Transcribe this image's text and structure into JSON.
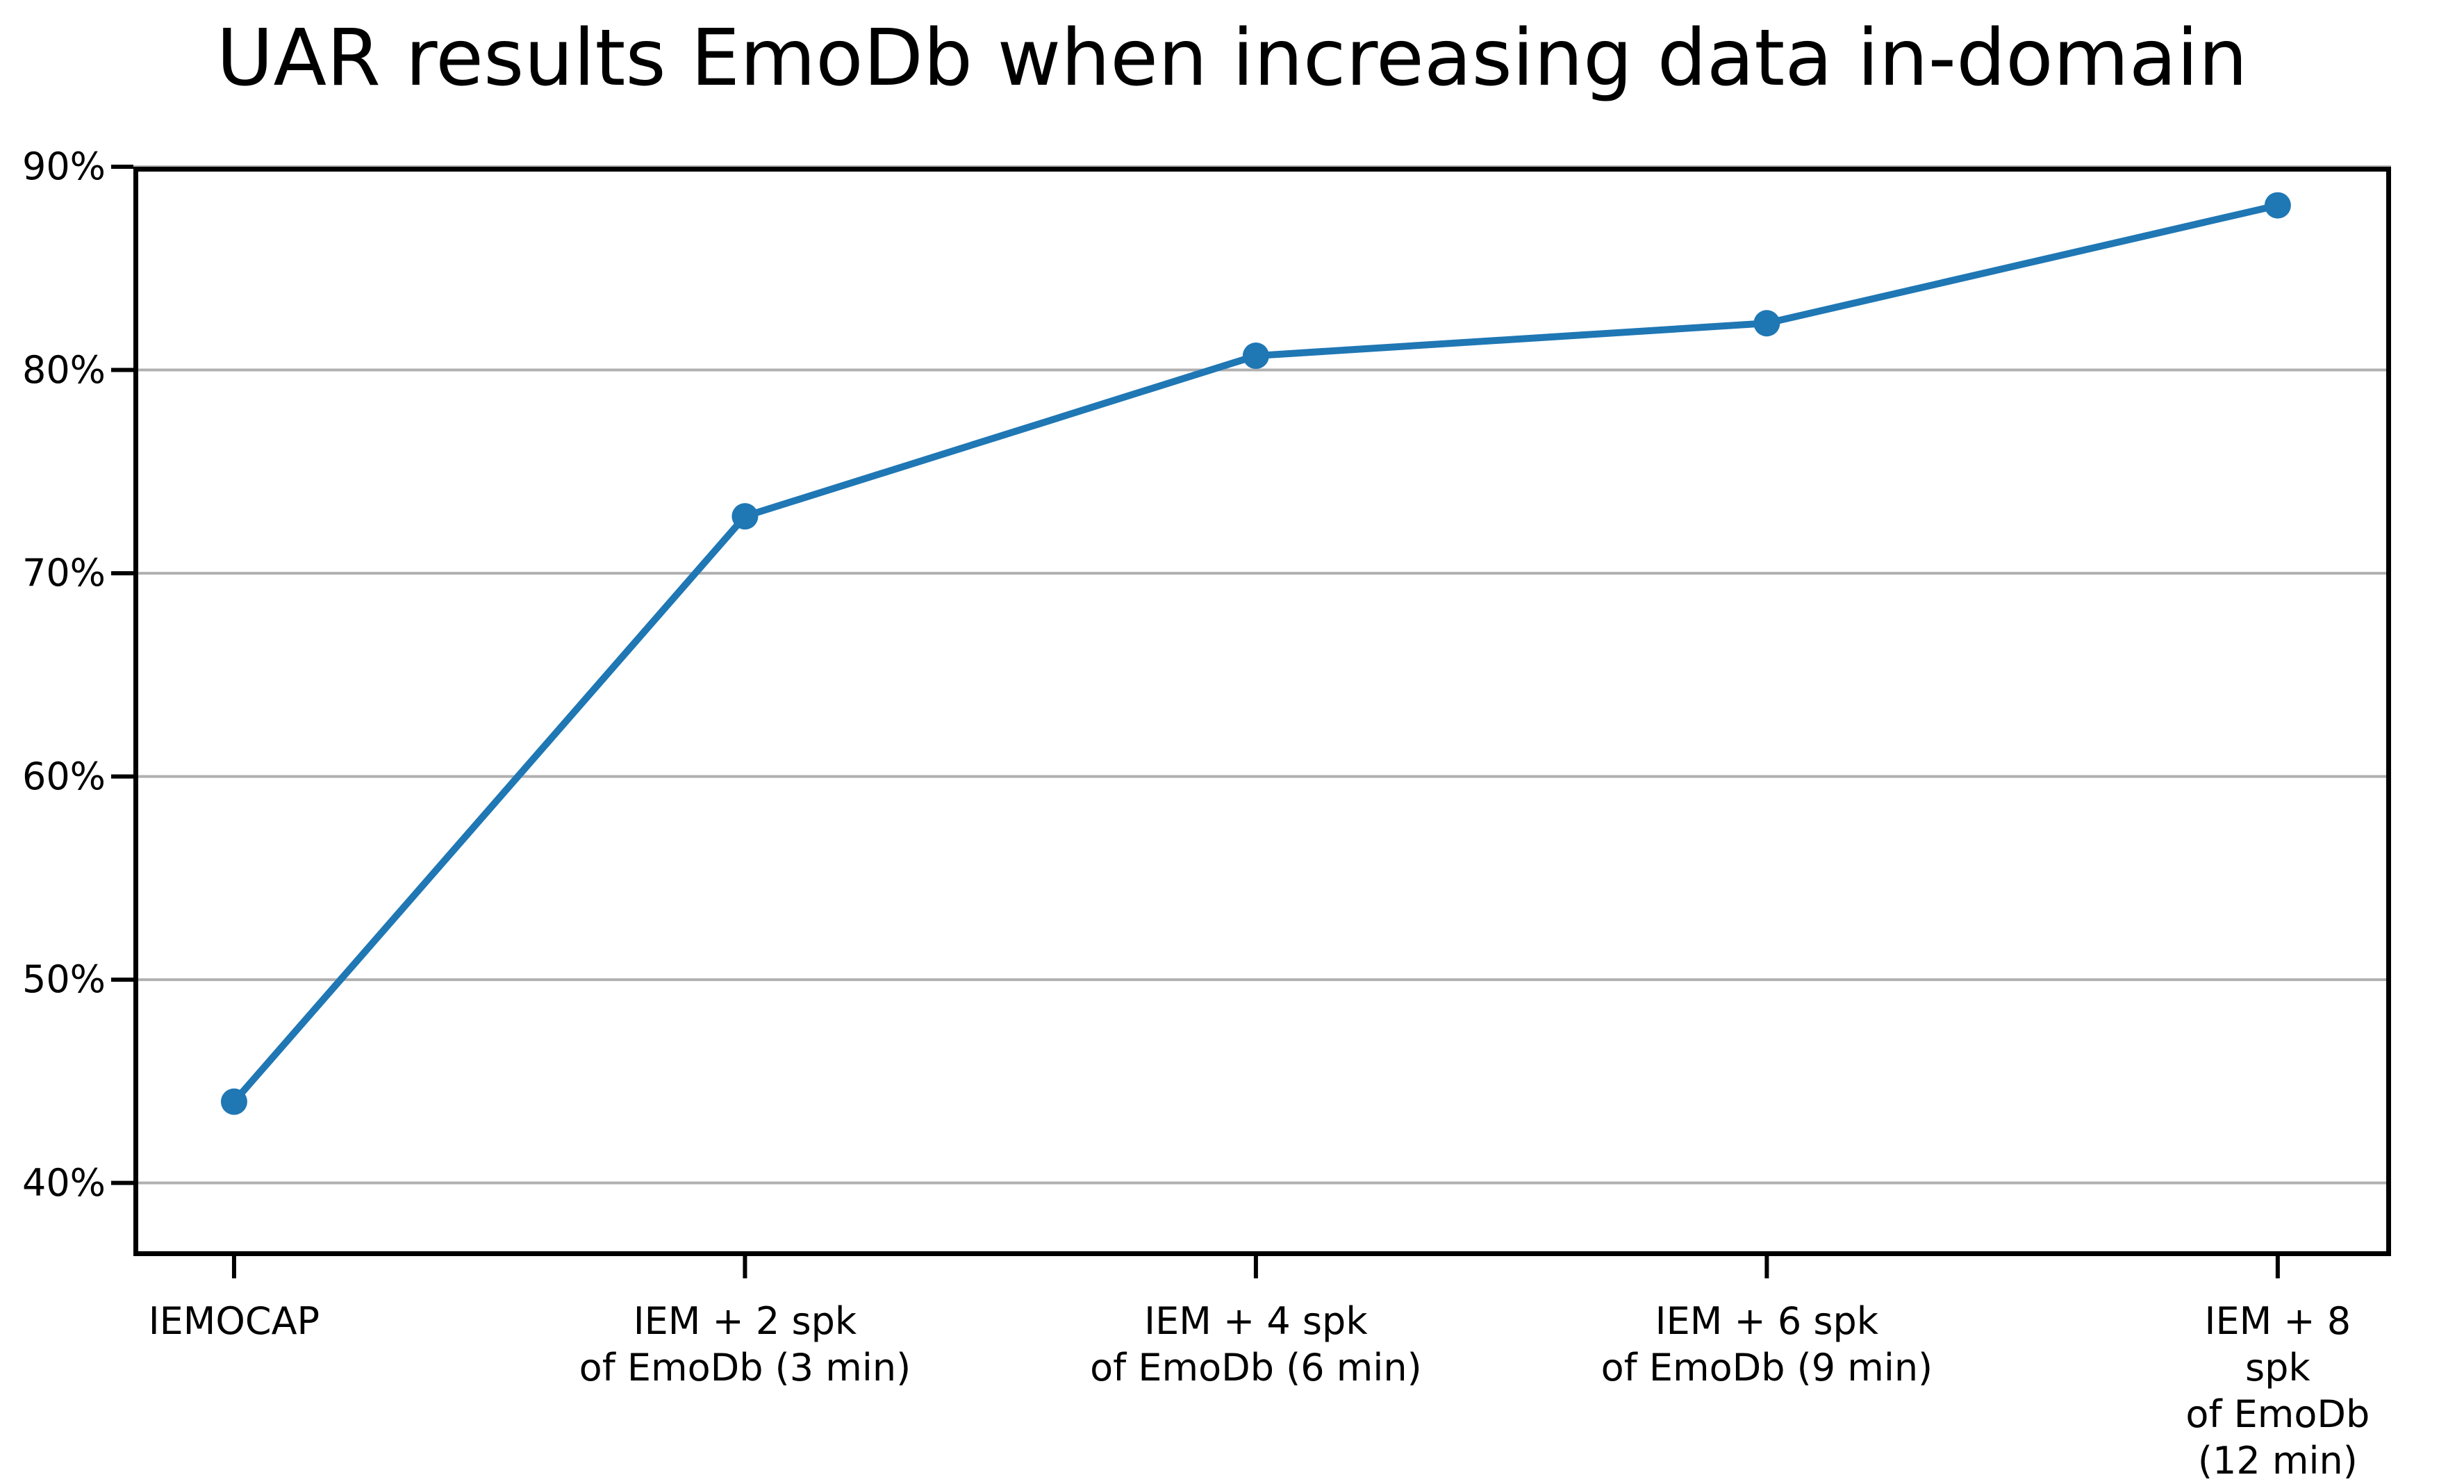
{
  "chart_data": {
    "type": "line",
    "title": "UAR results EmoDb when increasing data in-domain",
    "categories": [
      "IEMOCAP",
      "IEM + 2 spk\nof EmoDb (3 min)",
      "IEM + 4 spk\nof EmoDb (6 min)",
      "IEM + 6 spk\nof EmoDb (9 min)",
      "IEM + 8 spk\nof EmoDb (12 min)"
    ],
    "series": [
      {
        "name": "UAR",
        "values": [
          44.0,
          72.8,
          80.7,
          82.3,
          88.1
        ]
      }
    ],
    "xlabel": "",
    "ylabel": "",
    "ylim": [
      36.4,
      90.0
    ],
    "yticks": [
      {
        "value": 90,
        "label": "90%"
      },
      {
        "value": 80,
        "label": "80%"
      },
      {
        "value": 70,
        "label": "70%"
      },
      {
        "value": 60,
        "label": "60%"
      },
      {
        "value": 50,
        "label": "50%"
      },
      {
        "value": 40,
        "label": "40%"
      }
    ],
    "grid": true,
    "legend": false,
    "line_color": "#1f77b4",
    "marker": "circle",
    "grid_color": "#b0b0b0",
    "spine_color": "#000000",
    "background": "#ffffff"
  }
}
